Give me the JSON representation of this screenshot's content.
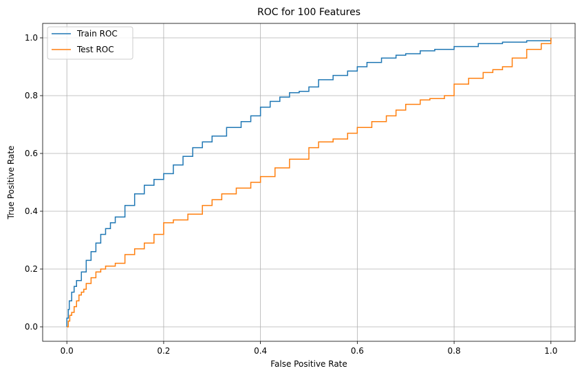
{
  "chart_data": {
    "type": "line",
    "title": "ROC for 100 Features",
    "xlabel": "False Positive Rate",
    "ylabel": "True Positive Rate",
    "xlim": [
      -0.05,
      1.05
    ],
    "ylim": [
      -0.05,
      1.05
    ],
    "xticks": [
      0.0,
      0.2,
      0.4,
      0.6,
      0.8,
      1.0
    ],
    "yticks": [
      0.0,
      0.2,
      0.4,
      0.6,
      0.8,
      1.0
    ],
    "xtick_labels": [
      "0.0",
      "0.2",
      "0.4",
      "0.6",
      "0.8",
      "1.0"
    ],
    "ytick_labels": [
      "0.0",
      "0.2",
      "0.4",
      "0.6",
      "0.8",
      "1.0"
    ],
    "grid": true,
    "legend_position": "top-left",
    "series": [
      {
        "name": "Train ROC",
        "color": "#1f77b4",
        "x": [
          0.0,
          0.0,
          0.003,
          0.005,
          0.01,
          0.015,
          0.02,
          0.03,
          0.04,
          0.05,
          0.06,
          0.07,
          0.08,
          0.09,
          0.1,
          0.12,
          0.14,
          0.16,
          0.18,
          0.2,
          0.22,
          0.24,
          0.26,
          0.28,
          0.3,
          0.33,
          0.36,
          0.38,
          0.4,
          0.42,
          0.44,
          0.46,
          0.48,
          0.5,
          0.52,
          0.55,
          0.58,
          0.6,
          0.62,
          0.65,
          0.68,
          0.7,
          0.73,
          0.76,
          0.8,
          0.85,
          0.9,
          0.95,
          1.0
        ],
        "y": [
          0.0,
          0.03,
          0.06,
          0.09,
          0.12,
          0.14,
          0.16,
          0.19,
          0.23,
          0.26,
          0.29,
          0.32,
          0.34,
          0.36,
          0.38,
          0.42,
          0.46,
          0.49,
          0.51,
          0.53,
          0.56,
          0.59,
          0.62,
          0.64,
          0.66,
          0.69,
          0.71,
          0.73,
          0.76,
          0.78,
          0.795,
          0.81,
          0.815,
          0.83,
          0.855,
          0.87,
          0.885,
          0.9,
          0.915,
          0.93,
          0.94,
          0.945,
          0.955,
          0.96,
          0.97,
          0.98,
          0.985,
          0.99,
          1.0
        ]
      },
      {
        "name": "Test ROC",
        "color": "#ff7f0e",
        "x": [
          0.0,
          0.003,
          0.006,
          0.01,
          0.015,
          0.02,
          0.025,
          0.03,
          0.035,
          0.04,
          0.05,
          0.06,
          0.07,
          0.08,
          0.1,
          0.12,
          0.14,
          0.16,
          0.18,
          0.2,
          0.22,
          0.25,
          0.28,
          0.3,
          0.32,
          0.35,
          0.38,
          0.4,
          0.43,
          0.46,
          0.5,
          0.52,
          0.55,
          0.58,
          0.6,
          0.63,
          0.66,
          0.68,
          0.7,
          0.73,
          0.75,
          0.78,
          0.8,
          0.83,
          0.86,
          0.88,
          0.9,
          0.92,
          0.95,
          0.98,
          1.0
        ],
        "y": [
          0.0,
          0.02,
          0.04,
          0.05,
          0.07,
          0.09,
          0.11,
          0.12,
          0.13,
          0.15,
          0.17,
          0.19,
          0.2,
          0.21,
          0.22,
          0.25,
          0.27,
          0.29,
          0.32,
          0.36,
          0.37,
          0.39,
          0.42,
          0.44,
          0.46,
          0.48,
          0.5,
          0.52,
          0.55,
          0.58,
          0.62,
          0.64,
          0.65,
          0.67,
          0.69,
          0.71,
          0.73,
          0.75,
          0.77,
          0.785,
          0.79,
          0.8,
          0.84,
          0.86,
          0.88,
          0.89,
          0.9,
          0.93,
          0.96,
          0.98,
          1.0
        ]
      }
    ]
  }
}
